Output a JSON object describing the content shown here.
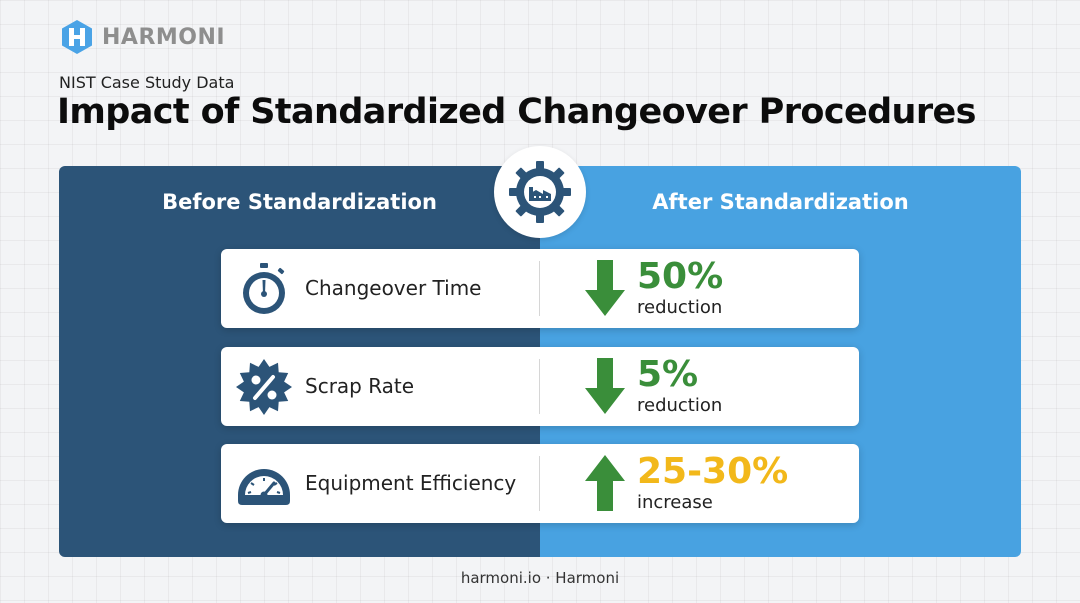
{
  "brand": {
    "name": "HARMONI",
    "color": "#4aa3e6"
  },
  "header": {
    "eyebrow": "NIST Case Study Data",
    "title": "Impact of Standardized Changeover Procedures"
  },
  "columns": {
    "before": "Before Standardization",
    "after": "After Standardization"
  },
  "center_icon": "factory-gear-icon",
  "metrics": [
    {
      "label": "Changeover Time",
      "icon": "stopwatch-icon",
      "direction": "down",
      "value": "50%",
      "sub": "reduction",
      "color": "#3a8e3a"
    },
    {
      "label": "Scrap Rate",
      "icon": "percent-badge-icon",
      "direction": "down",
      "value": "5%",
      "sub": "reduction",
      "color": "#3a8e3a"
    },
    {
      "label": "Equipment Efficiency",
      "icon": "speedometer-icon",
      "direction": "up",
      "value": "25-30%",
      "sub": "increase",
      "color": "#f2b81a"
    }
  ],
  "colors": {
    "panel_left": "#2c5478",
    "panel_right": "#48a2e1",
    "icon_dark": "#2c5478",
    "arrow_green": "#3a8e3a"
  },
  "footer": "harmoni.io · Harmoni"
}
